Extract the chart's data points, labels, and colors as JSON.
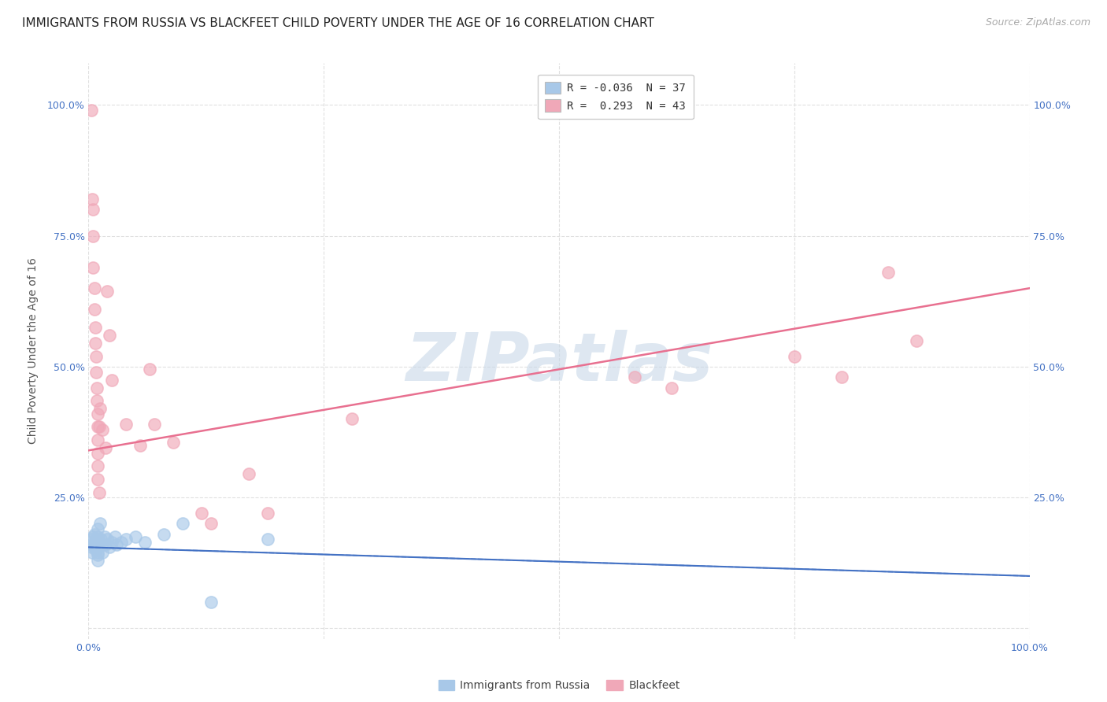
{
  "title": "IMMIGRANTS FROM RUSSIA VS BLACKFEET CHILD POVERTY UNDER THE AGE OF 16 CORRELATION CHART",
  "source": "Source: ZipAtlas.com",
  "ylabel": "Child Poverty Under the Age of 16",
  "xlim": [
    0.0,
    1.0
  ],
  "ylim": [
    -0.02,
    1.08
  ],
  "plot_xlim": [
    0.0,
    1.0
  ],
  "plot_ylim": [
    0.0,
    1.0
  ],
  "xtick_positions": [
    0.0,
    1.0
  ],
  "xtick_labels": [
    "0.0%",
    "100.0%"
  ],
  "ytick_positions": [
    0.0,
    0.25,
    0.5,
    0.75,
    1.0
  ],
  "ytick_labels": [
    "",
    "25.0%",
    "50.0%",
    "75.0%",
    "100.0%"
  ],
  "ytick_labels_right": [
    "",
    "25.0%",
    "50.0%",
    "75.0%",
    "100.0%"
  ],
  "legend_label1": "R = -0.036  N = 37",
  "legend_label2": "R =  0.293  N = 43",
  "russia_color": "#a8c8e8",
  "blackfeet_color": "#f0a8b8",
  "russia_line_color": "#4472c4",
  "blackfeet_line_color": "#e8708080",
  "watermark_text": "ZIPatlas",
  "watermark_color": "#c8d8e8",
  "bottom_labels": [
    "Immigrants from Russia",
    "Blackfeet"
  ],
  "russia_scatter": [
    [
      0.003,
      0.155
    ],
    [
      0.003,
      0.17
    ],
    [
      0.004,
      0.145
    ],
    [
      0.005,
      0.16
    ],
    [
      0.005,
      0.175
    ],
    [
      0.006,
      0.18
    ],
    [
      0.006,
      0.155
    ],
    [
      0.007,
      0.165
    ],
    [
      0.007,
      0.155
    ],
    [
      0.008,
      0.17
    ],
    [
      0.008,
      0.15
    ],
    [
      0.009,
      0.16
    ],
    [
      0.01,
      0.155
    ],
    [
      0.01,
      0.175
    ],
    [
      0.01,
      0.19
    ],
    [
      0.01,
      0.13
    ],
    [
      0.01,
      0.14
    ],
    [
      0.01,
      0.145
    ],
    [
      0.012,
      0.2
    ],
    [
      0.013,
      0.17
    ],
    [
      0.015,
      0.16
    ],
    [
      0.015,
      0.145
    ],
    [
      0.017,
      0.175
    ],
    [
      0.018,
      0.16
    ],
    [
      0.02,
      0.17
    ],
    [
      0.022,
      0.155
    ],
    [
      0.025,
      0.165
    ],
    [
      0.028,
      0.175
    ],
    [
      0.03,
      0.16
    ],
    [
      0.035,
      0.165
    ],
    [
      0.04,
      0.17
    ],
    [
      0.05,
      0.175
    ],
    [
      0.06,
      0.165
    ],
    [
      0.08,
      0.18
    ],
    [
      0.1,
      0.2
    ],
    [
      0.13,
      0.05
    ],
    [
      0.19,
      0.17
    ]
  ],
  "blackfeet_scatter": [
    [
      0.003,
      0.99
    ],
    [
      0.004,
      0.82
    ],
    [
      0.005,
      0.8
    ],
    [
      0.005,
      0.75
    ],
    [
      0.005,
      0.69
    ],
    [
      0.006,
      0.65
    ],
    [
      0.006,
      0.61
    ],
    [
      0.007,
      0.575
    ],
    [
      0.007,
      0.545
    ],
    [
      0.008,
      0.52
    ],
    [
      0.008,
      0.49
    ],
    [
      0.009,
      0.46
    ],
    [
      0.009,
      0.435
    ],
    [
      0.01,
      0.41
    ],
    [
      0.01,
      0.385
    ],
    [
      0.01,
      0.36
    ],
    [
      0.01,
      0.335
    ],
    [
      0.01,
      0.31
    ],
    [
      0.01,
      0.285
    ],
    [
      0.011,
      0.26
    ],
    [
      0.011,
      0.385
    ],
    [
      0.012,
      0.42
    ],
    [
      0.015,
      0.38
    ],
    [
      0.018,
      0.345
    ],
    [
      0.02,
      0.645
    ],
    [
      0.022,
      0.56
    ],
    [
      0.025,
      0.475
    ],
    [
      0.04,
      0.39
    ],
    [
      0.055,
      0.35
    ],
    [
      0.065,
      0.495
    ],
    [
      0.07,
      0.39
    ],
    [
      0.09,
      0.355
    ],
    [
      0.12,
      0.22
    ],
    [
      0.13,
      0.2
    ],
    [
      0.17,
      0.295
    ],
    [
      0.19,
      0.22
    ],
    [
      0.28,
      0.4
    ],
    [
      0.58,
      0.48
    ],
    [
      0.62,
      0.46
    ],
    [
      0.75,
      0.52
    ],
    [
      0.8,
      0.48
    ],
    [
      0.85,
      0.68
    ],
    [
      0.88,
      0.55
    ]
  ],
  "russia_trend_x": [
    0.0,
    1.0
  ],
  "russia_trend_y": [
    0.155,
    0.1
  ],
  "blackfeet_trend_x": [
    0.0,
    1.0
  ],
  "blackfeet_trend_y": [
    0.34,
    0.65
  ],
  "grid_color": "#e0e0e0",
  "background_color": "#ffffff",
  "tick_color": "#4472c4",
  "title_fontsize": 11,
  "source_fontsize": 9,
  "axis_label_fontsize": 10,
  "tick_fontsize": 9,
  "legend_fontsize": 10
}
